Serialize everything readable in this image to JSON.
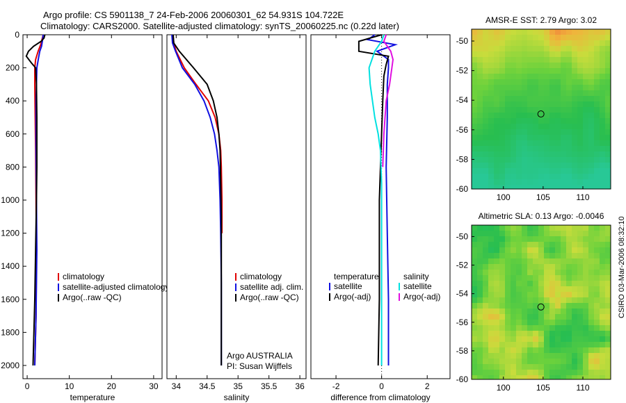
{
  "header": {
    "line1": "Argo profile: CS 5901138_7 24-Feb-2006 20060301_62 54.931S 104.722E",
    "line2": "Climatology: CARS2000. Satellite-adjusted climatology: synTS_20060225.nc (0.22d later)"
  },
  "stamp": "CSIRO 03-Mar-2006 08:32:10",
  "colors": {
    "red": "#e00000",
    "blue": "#1010e0",
    "black": "#000000",
    "cyan": "#00e0e0",
    "magenta": "#e010e0"
  },
  "chart_data": [
    {
      "type": "line",
      "xlabel": "temperature",
      "xlim": [
        -1,
        32
      ],
      "ylim": [
        2080,
        0
      ],
      "xticks": [
        0,
        10,
        20,
        30
      ],
      "yticks": [
        0,
        200,
        400,
        600,
        800,
        1000,
        1200,
        1400,
        1600,
        1800,
        2000
      ],
      "legend": [
        "climatology",
        "satellite-adjusted climatology",
        "Argo(..raw -QC)"
      ],
      "series": [
        {
          "color": "red",
          "points": [
            [
              3.8,
              0
            ],
            [
              3.5,
              30
            ],
            [
              3.2,
              60
            ],
            [
              2.6,
              100
            ],
            [
              2.0,
              150
            ],
            [
              1.8,
              200
            ],
            [
              1.8,
              300
            ],
            [
              1.9,
              500
            ],
            [
              2.0,
              700
            ],
            [
              2.1,
              1000
            ],
            [
              2.2,
              1300
            ],
            [
              2.1,
              1700
            ],
            [
              1.8,
              2000
            ]
          ]
        },
        {
          "color": "blue",
          "points": [
            [
              3.8,
              0
            ],
            [
              3.6,
              40
            ],
            [
              3.4,
              70
            ],
            [
              3.0,
              100
            ],
            [
              2.7,
              140
            ],
            [
              2.3,
              200
            ],
            [
              2.2,
              300
            ],
            [
              2.1,
              400
            ],
            [
              2.1,
              500
            ],
            [
              2.1,
              700
            ],
            [
              2.2,
              1000
            ],
            [
              2.3,
              1300
            ],
            [
              2.1,
              1700
            ],
            [
              1.8,
              2000
            ]
          ]
        },
        {
          "color": "black",
          "points": [
            [
              4.2,
              0
            ],
            [
              4.0,
              20
            ],
            [
              3.3,
              40
            ],
            [
              1.5,
              70
            ],
            [
              0.3,
              100
            ],
            [
              -0.2,
              130
            ],
            [
              1.0,
              170
            ],
            [
              2.0,
              200
            ],
            [
              2.2,
              300
            ],
            [
              2.3,
              500
            ],
            [
              2.3,
              800
            ],
            [
              2.2,
              1000
            ],
            [
              2.0,
              1300
            ],
            [
              1.8,
              1600
            ],
            [
              1.4,
              2000
            ]
          ]
        }
      ]
    },
    {
      "type": "line",
      "xlabel": "salinity",
      "xlim": [
        33.85,
        36.1
      ],
      "ylim": [
        2080,
        0
      ],
      "xticks": [
        34,
        34.5,
        35,
        35.5,
        36
      ],
      "legend": [
        "climatology",
        "satellite adj. clim.",
        "Argo(..raw -QC)"
      ],
      "annotation": [
        "Argo AUSTRALIA",
        "PI: Susan Wijffels"
      ],
      "series": [
        {
          "color": "red",
          "points": [
            [
              33.95,
              0
            ],
            [
              33.96,
              50
            ],
            [
              34.0,
              100
            ],
            [
              34.13,
              200
            ],
            [
              34.32,
              300
            ],
            [
              34.52,
              400
            ],
            [
              34.63,
              500
            ],
            [
              34.69,
              600
            ],
            [
              34.72,
              700
            ],
            [
              34.73,
              800
            ],
            [
              34.74,
              1000
            ],
            [
              34.74,
              1200
            ]
          ]
        },
        {
          "color": "blue",
          "points": [
            [
              33.93,
              0
            ],
            [
              33.94,
              50
            ],
            [
              33.99,
              100
            ],
            [
              34.1,
              200
            ],
            [
              34.3,
              300
            ],
            [
              34.45,
              400
            ],
            [
              34.55,
              500
            ],
            [
              34.62,
              600
            ],
            [
              34.66,
              700
            ],
            [
              34.69,
              800
            ],
            [
              34.71,
              1000
            ],
            [
              34.72,
              1200
            ],
            [
              34.73,
              1500
            ],
            [
              34.73,
              1800
            ],
            [
              34.73,
              2000
            ]
          ]
        },
        {
          "color": "black",
          "points": [
            [
              33.95,
              0
            ],
            [
              33.96,
              50
            ],
            [
              34.05,
              100
            ],
            [
              34.28,
              200
            ],
            [
              34.5,
              300
            ],
            [
              34.6,
              400
            ],
            [
              34.66,
              500
            ],
            [
              34.69,
              600
            ],
            [
              34.71,
              700
            ],
            [
              34.72,
              900
            ],
            [
              34.73,
              1100
            ],
            [
              34.73,
              1400
            ],
            [
              34.73,
              1800
            ],
            [
              34.73,
              2000
            ]
          ]
        }
      ]
    },
    {
      "type": "line",
      "xlabel": "difference from climatology",
      "xlim": [
        -3.1,
        3.0
      ],
      "ylim": [
        2080,
        0
      ],
      "xticks": [
        -2,
        0,
        2
      ],
      "legend_left_title": "temperature",
      "legend_left": [
        "satellite",
        "Argo(-adj)"
      ],
      "legend_right_title": "salinity",
      "legend_right": [
        "satellite",
        "Argo(-adj)"
      ],
      "series": [
        {
          "color": "blue",
          "points": [
            [
              -0.3,
              0
            ],
            [
              -0.6,
              30
            ],
            [
              0.6,
              60
            ],
            [
              -0.2,
              100
            ],
            [
              0.3,
              150
            ],
            [
              0.3,
              200
            ],
            [
              0.25,
              300
            ],
            [
              0.25,
              500
            ],
            [
              0.2,
              800
            ],
            [
              0.25,
              1200
            ],
            [
              0.3,
              1600
            ],
            [
              0.3,
              2000
            ]
          ]
        },
        {
          "color": "black",
          "points": [
            [
              0.0,
              0
            ],
            [
              -1.0,
              40
            ],
            [
              -1.0,
              100
            ],
            [
              0.3,
              130
            ],
            [
              0.2,
              180
            ],
            [
              0.1,
              250
            ],
            [
              0.05,
              400
            ],
            [
              0.0,
              600
            ],
            [
              -0.05,
              800
            ],
            [
              -0.1,
              1000
            ],
            [
              -0.1,
              1300
            ],
            [
              -0.1,
              1600
            ],
            [
              -0.15,
              2000
            ]
          ]
        },
        {
          "color": "cyan",
          "points": [
            [
              0.1,
              0
            ],
            [
              0.0,
              40
            ],
            [
              -0.3,
              100
            ],
            [
              -0.55,
              200
            ],
            [
              -0.5,
              300
            ],
            [
              -0.4,
              400
            ],
            [
              -0.3,
              500
            ],
            [
              -0.15,
              600
            ],
            [
              -0.05,
              700
            ],
            [
              0.0,
              900
            ],
            [
              0.0,
              1200
            ],
            [
              0.0,
              1500
            ],
            [
              0.0,
              2000
            ]
          ]
        },
        {
          "color": "magenta",
          "points": [
            [
              0.2,
              0
            ],
            [
              0.1,
              40
            ],
            [
              0.4,
              100
            ],
            [
              0.5,
              150
            ],
            [
              0.45,
              200
            ],
            [
              0.35,
              300
            ],
            [
              0.2,
              400
            ],
            [
              0.1,
              600
            ],
            [
              0.05,
              800
            ]
          ]
        }
      ]
    },
    {
      "type": "heatmap",
      "title": "AMSR-E SST: 2.79 Argo: 3.02",
      "xlim": [
        96,
        113.5
      ],
      "ylim": [
        -60,
        -49.2
      ],
      "xticks": [
        100,
        105,
        110
      ],
      "yticks": [
        -50,
        -52,
        -54,
        -56,
        -58,
        -60
      ],
      "marker": {
        "lon": 104.722,
        "lat": -54.931
      }
    },
    {
      "type": "heatmap",
      "title": "Altimetric SLA: 0.13 Argo: -0.0046",
      "xlim": [
        96,
        113.5
      ],
      "ylim": [
        -60,
        -49.2
      ],
      "xticks": [
        100,
        105,
        110
      ],
      "yticks": [
        -50,
        -52,
        -54,
        -56,
        -58,
        -60
      ],
      "marker": {
        "lon": 104.722,
        "lat": -54.931
      }
    }
  ]
}
